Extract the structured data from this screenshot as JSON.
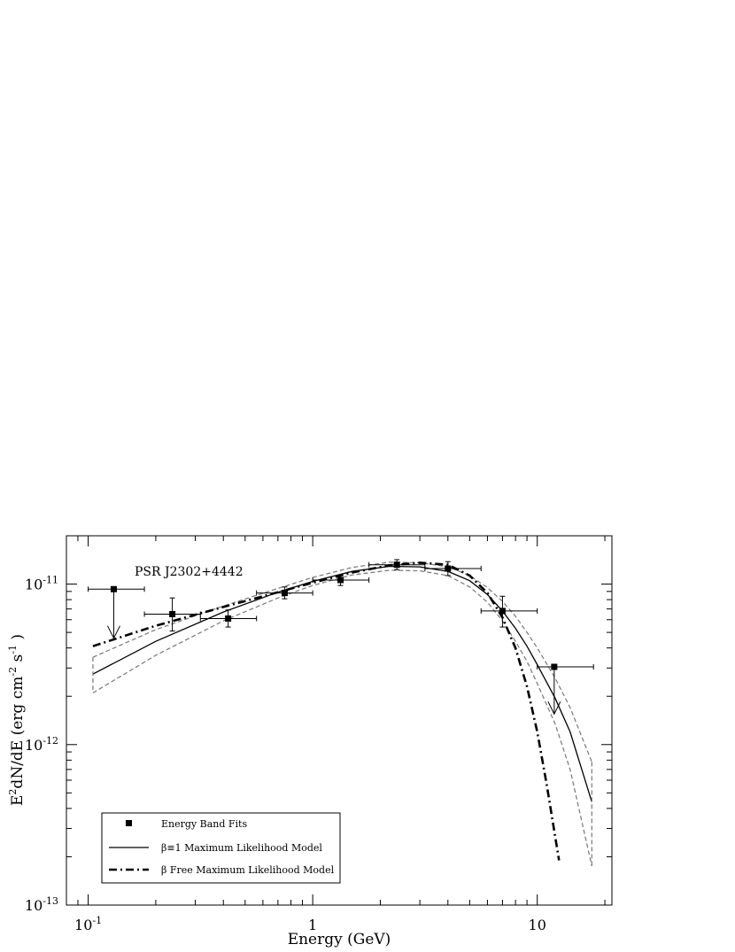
{
  "chart_data": {
    "type": "scatter",
    "title": "",
    "annotation": "PSR J2302+4442",
    "xlabel": "Energy (GeV)",
    "ylabel": {
      "base": "E",
      "sup1": "2",
      "mid": "dN/dE (erg cm",
      "sup2": "-2",
      "mid2": " s",
      "sup3": "-1",
      "end": " )"
    },
    "x_scale": "log",
    "y_scale": "log",
    "xlim": [
      0.08,
      21.5
    ],
    "ylim": [
      1e-13,
      2e-11
    ],
    "x_ticks": [
      {
        "value": 0.1,
        "base": "10",
        "exp": "-1"
      },
      {
        "value": 1,
        "base": "1",
        "exp": ""
      },
      {
        "value": 10,
        "base": "10",
        "exp": ""
      }
    ],
    "y_ticks": [
      {
        "value": 1e-11,
        "base": "10",
        "exp": "-11"
      },
      {
        "value": 1e-12,
        "base": "10",
        "exp": "-12"
      },
      {
        "value": 1e-13,
        "base": "10",
        "exp": "-13"
      }
    ],
    "legend": {
      "placement": "bottom-left",
      "entries": [
        {
          "label": "Energy Band Fits",
          "style": "marker"
        },
        {
          "label": "β≡1 Maximum Likelihood Model",
          "style": "solid"
        },
        {
          "label": "β Free Maximum Likelihood Model",
          "style": "dashdot"
        }
      ]
    },
    "points": [
      {
        "x": 0.13,
        "y": 9.3e-12,
        "xerr": [
          0.1,
          0.178
        ],
        "upper_limit": true,
        "arrow_to": 4.6e-12
      },
      {
        "x": 0.237,
        "y": 6.5e-12,
        "xerr": [
          0.178,
          0.316
        ],
        "yerr": [
          5.1e-12,
          8.2e-12
        ]
      },
      {
        "x": 0.42,
        "y": 6.1e-12,
        "xerr": [
          0.316,
          0.562
        ],
        "yerr": [
          5.4e-12,
          6.9e-12
        ]
      },
      {
        "x": 0.75,
        "y": 8.8e-12,
        "xerr": [
          0.562,
          1.0
        ],
        "yerr": [
          8.1e-12,
          9.6e-12
        ]
      },
      {
        "x": 1.33,
        "y": 1.06e-11,
        "xerr": [
          1.0,
          1.78
        ],
        "yerr": [
          9.8e-12,
          1.14e-11
        ]
      },
      {
        "x": 2.37,
        "y": 1.32e-11,
        "xerr": [
          1.78,
          3.16
        ],
        "yerr": [
          1.23e-11,
          1.42e-11
        ]
      },
      {
        "x": 4.0,
        "y": 1.25e-11,
        "xerr": [
          3.16,
          5.62
        ],
        "yerr": [
          1.13e-11,
          1.38e-11
        ]
      },
      {
        "x": 7.0,
        "y": 6.8e-12,
        "xerr": [
          5.62,
          10.0
        ],
        "yerr": [
          5.4e-12,
          8.4e-12
        ]
      },
      {
        "x": 11.9,
        "y": 3.05e-12,
        "xerr": [
          10.0,
          17.8
        ],
        "upper_limit": true,
        "arrow_to": 1.55e-12
      }
    ],
    "series": [
      {
        "style": "solid",
        "x": [
          0.105,
          0.2,
          0.4,
          0.7,
          1.0,
          1.5,
          2.2,
          3.0,
          4.0,
          5.0,
          6.0,
          7.0,
          8.0,
          9.0,
          10.0,
          12.0,
          14.0,
          17.5
        ],
        "y": [
          2.75e-12,
          4.4e-12,
          6.7e-12,
          8.9e-12,
          1.04e-11,
          1.2e-11,
          1.29e-11,
          1.28e-11,
          1.2e-11,
          1.05e-11,
          8.6e-12,
          6.8e-12,
          5.3e-12,
          4.1e-12,
          3.15e-12,
          1.95e-12,
          1.2e-12,
          4.4e-13
        ]
      },
      {
        "style": "dashed",
        "x": [
          0.105,
          0.2,
          0.4,
          0.7,
          1.0,
          1.5,
          2.2,
          3.0,
          4.0,
          5.0,
          6.0,
          7.0,
          8.0,
          9.0,
          10.0,
          12.0,
          14.0,
          17.5
        ],
        "y": [
          3.5e-12,
          5.2e-12,
          7.3e-12,
          9.4e-12,
          1.1e-11,
          1.27e-11,
          1.37e-11,
          1.36e-11,
          1.28e-11,
          1.13e-11,
          9.5e-12,
          7.8e-12,
          6.3e-12,
          5e-12,
          4e-12,
          2.6e-12,
          1.7e-12,
          7.8e-13
        ]
      },
      {
        "style": "dashed",
        "x": [
          0.105,
          0.2,
          0.4,
          0.7,
          1.0,
          1.5,
          2.2,
          3.0,
          4.0,
          5.0,
          6.0,
          7.0,
          8.0,
          9.0,
          10.0,
          12.0,
          14.0,
          17.5
        ],
        "y": [
          2.1e-12,
          3.6e-12,
          5.9e-12,
          8.2e-12,
          9.8e-12,
          1.14e-11,
          1.22e-11,
          1.21e-11,
          1.13e-11,
          9.6e-12,
          7.7e-12,
          5.9e-12,
          4.4e-12,
          3.3e-12,
          2.4e-12,
          1.35e-12,
          7e-13,
          1.75e-13
        ]
      },
      {
        "style": "dashdot",
        "x": [
          0.105,
          0.2,
          0.4,
          0.7,
          1.0,
          1.5,
          2.2,
          3.0,
          4.0,
          5.0,
          6.0,
          7.0,
          8.0,
          9.0,
          10.0,
          11.0,
          12.5
        ],
        "y": [
          4.1e-12,
          5.5e-12,
          7.2e-12,
          8.9e-12,
          1.02e-11,
          1.18e-11,
          1.31e-11,
          1.36e-11,
          1.32e-11,
          1.13e-11,
          8.8e-12,
          6.2e-12,
          4e-12,
          2.3e-12,
          1.2e-12,
          5.7e-13,
          1.9e-13
        ]
      }
    ]
  }
}
